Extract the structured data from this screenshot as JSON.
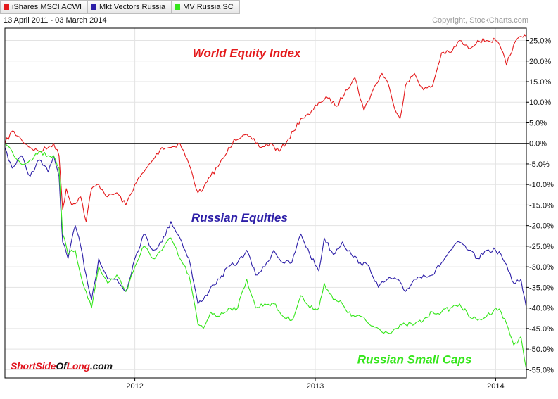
{
  "legend": [
    {
      "label": "iShares MSCI ACWI",
      "color": "#e41a1c"
    },
    {
      "label": "Mkt Vectors Russia",
      "color": "#2d1fa8"
    },
    {
      "label": "MV Russia SC",
      "color": "#35e61b"
    }
  ],
  "header": {
    "date_range": "13 April 2011 - 03 March 2014",
    "copyright": "Copyright, StockCharts.com"
  },
  "watermark": {
    "part1": "ShortSide",
    "part2": "Of",
    "part3": "Long",
    "part4": ".com"
  },
  "chart_data": {
    "type": "line",
    "title": "",
    "xlabel": "",
    "ylabel": "",
    "ylim": [
      -57,
      28
    ],
    "y_ticks": [
      25,
      20,
      15,
      10,
      5,
      0,
      -5,
      -10,
      -15,
      -20,
      -25,
      -30,
      -35,
      -40,
      -45,
      -50,
      -55
    ],
    "y_tick_labels": [
      "25.0%",
      "20.0%",
      "15.0%",
      "10.0%",
      "5.0%",
      "0.0%",
      "-5.0%",
      "-10.0%",
      "-15.0%",
      "-20.0%",
      "-25.0%",
      "-30.0%",
      "-35.0%",
      "-40.0%",
      "-45.0%",
      "-50.0%",
      "-55.0%"
    ],
    "x_start": 2011.28,
    "x_end": 2014.17,
    "x_ticks": [
      2012,
      2013,
      2014
    ],
    "x_tick_labels": [
      "2012",
      "2013",
      "2014"
    ],
    "zero_line": 0,
    "annotations": [
      {
        "text": "World Equity Index",
        "color": "#e41a1c",
        "x": 2012.62,
        "y": 21
      },
      {
        "text": "Russian Equities",
        "color": "#2d1fa8",
        "x": 2012.58,
        "y": -19
      },
      {
        "text": "Russian Small Caps",
        "color": "#35e61b",
        "x": 2013.55,
        "y": -53.5
      }
    ],
    "series": [
      {
        "name": "iShares MSCI ACWI",
        "color": "#e41a1c",
        "x": [
          2011.28,
          2011.32,
          2011.37,
          2011.42,
          2011.47,
          2011.52,
          2011.55,
          2011.58,
          2011.6,
          2011.62,
          2011.65,
          2011.7,
          2011.73,
          2011.76,
          2011.8,
          2011.85,
          2011.9,
          2011.95,
          2012.0,
          2012.05,
          2012.1,
          2012.15,
          2012.2,
          2012.25,
          2012.3,
          2012.35,
          2012.38,
          2012.42,
          2012.47,
          2012.5,
          2012.55,
          2012.6,
          2012.65,
          2012.7,
          2012.75,
          2012.8,
          2012.85,
          2012.88,
          2012.92,
          2012.97,
          2013.02,
          2013.07,
          2013.12,
          2013.17,
          2013.22,
          2013.27,
          2013.32,
          2013.37,
          2013.4,
          2013.43,
          2013.47,
          2013.5,
          2013.55,
          2013.6,
          2013.65,
          2013.7,
          2013.75,
          2013.8,
          2013.85,
          2013.9,
          2013.95,
          2014.0,
          2014.03,
          2014.06,
          2014.1,
          2014.14,
          2014.17
        ],
        "values": [
          0,
          3,
          1,
          -1,
          -2,
          -1,
          0,
          -3,
          -16,
          -11,
          -15,
          -13,
          -19,
          -11,
          -10,
          -13,
          -12,
          -15,
          -10,
          -7,
          -4,
          -1,
          -1,
          0,
          -5,
          -12,
          -11,
          -8,
          -5,
          -3,
          1,
          2,
          1,
          -1,
          0,
          -2,
          1,
          3,
          6,
          7,
          10,
          11,
          9,
          13,
          16,
          8,
          13,
          17,
          15,
          10,
          6,
          14,
          17,
          13,
          14,
          22,
          22,
          25,
          23,
          25,
          25,
          25,
          23,
          19,
          24,
          26,
          26
        ]
      },
      {
        "name": "Mkt Vectors Russia",
        "color": "#2d1fa8",
        "x": [
          2011.28,
          2011.32,
          2011.37,
          2011.42,
          2011.47,
          2011.52,
          2011.55,
          2011.58,
          2011.6,
          2011.63,
          2011.67,
          2011.7,
          2011.73,
          2011.76,
          2011.8,
          2011.85,
          2011.9,
          2011.95,
          2012.0,
          2012.05,
          2012.1,
          2012.15,
          2012.2,
          2012.25,
          2012.3,
          2012.35,
          2012.38,
          2012.42,
          2012.47,
          2012.52,
          2012.57,
          2012.62,
          2012.67,
          2012.72,
          2012.77,
          2012.82,
          2012.87,
          2012.92,
          2012.97,
          2013.02,
          2013.05,
          2013.1,
          2013.15,
          2013.2,
          2013.25,
          2013.3,
          2013.35,
          2013.4,
          2013.45,
          2013.5,
          2013.55,
          2013.6,
          2013.65,
          2013.7,
          2013.75,
          2013.8,
          2013.85,
          2013.9,
          2013.95,
          2014.0,
          2014.03,
          2014.07,
          2014.1,
          2014.14,
          2014.17
        ],
        "values": [
          -1,
          -6,
          -3,
          -8,
          -4,
          -7,
          -3,
          -8,
          -24,
          -28,
          -20,
          -25,
          -32,
          -38,
          -28,
          -33,
          -33,
          -36,
          -28,
          -22,
          -26,
          -24,
          -19,
          -23,
          -28,
          -39,
          -38,
          -35,
          -33,
          -30,
          -29,
          -26,
          -32,
          -30,
          -26,
          -29,
          -29,
          -22,
          -27,
          -31,
          -23,
          -27,
          -24,
          -27,
          -29,
          -30,
          -35,
          -33,
          -33,
          -36,
          -33,
          -32,
          -32,
          -29,
          -26,
          -24,
          -26,
          -28,
          -26,
          -26,
          -27,
          -31,
          -34,
          -33,
          -40
        ]
      },
      {
        "name": "MV Russia SC",
        "color": "#35e61b",
        "x": [
          2011.28,
          2011.32,
          2011.37,
          2011.42,
          2011.47,
          2011.52,
          2011.55,
          2011.58,
          2011.6,
          2011.63,
          2011.67,
          2011.7,
          2011.73,
          2011.76,
          2011.8,
          2011.85,
          2011.9,
          2011.95,
          2012.0,
          2012.05,
          2012.1,
          2012.15,
          2012.2,
          2012.25,
          2012.3,
          2012.35,
          2012.38,
          2012.42,
          2012.47,
          2012.52,
          2012.57,
          2012.62,
          2012.67,
          2012.72,
          2012.77,
          2012.82,
          2012.87,
          2012.92,
          2012.97,
          2013.02,
          2013.05,
          2013.1,
          2013.15,
          2013.2,
          2013.25,
          2013.3,
          2013.35,
          2013.4,
          2013.45,
          2013.5,
          2013.55,
          2013.6,
          2013.65,
          2013.7,
          2013.75,
          2013.8,
          2013.85,
          2013.9,
          2013.95,
          2014.0,
          2014.03,
          2014.07,
          2014.1,
          2014.14,
          2014.17
        ],
        "values": [
          0,
          -2,
          -5,
          -4,
          -2,
          -3,
          -3,
          -6,
          -22,
          -27,
          -26,
          -32,
          -36,
          -40,
          -30,
          -34,
          -32,
          -36,
          -30,
          -25,
          -28,
          -26,
          -23,
          -28,
          -32,
          -44,
          -45,
          -41,
          -42,
          -40,
          -40,
          -33,
          -40,
          -39,
          -39,
          -42,
          -43,
          -37,
          -40,
          -40,
          -34,
          -38,
          -39,
          -42,
          -42,
          -44,
          -45,
          -46,
          -45,
          -44,
          -44,
          -43,
          -41,
          -41,
          -40,
          -39,
          -42,
          -43,
          -42,
          -40,
          -41,
          -45,
          -49,
          -47,
          -55
        ]
      }
    ]
  }
}
